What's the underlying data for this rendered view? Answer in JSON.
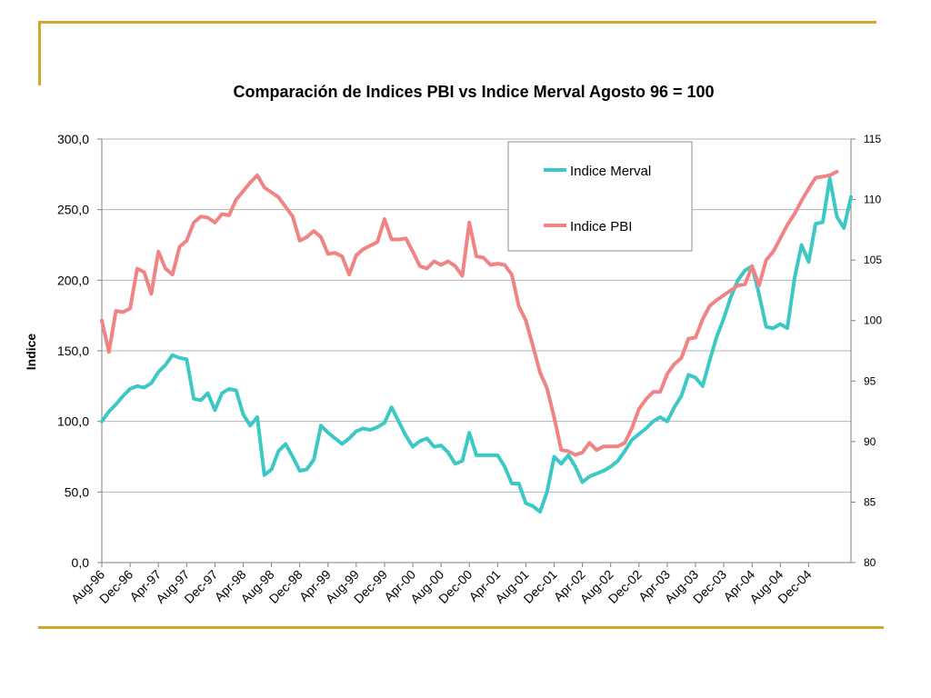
{
  "colors": {
    "frame": "#d4a62a",
    "merval": "#3cc8c4",
    "pbi": "#f08484",
    "grid": "#b4b4b4"
  },
  "chart_data": {
    "type": "line",
    "title": "Comparación de Indices PBI vs Indice Merval Agosto 96 = 100",
    "ylabel": "Indice",
    "ylim": [
      0,
      300
    ],
    "yticks": [
      "0,0",
      "50,0",
      "100,0",
      "150,0",
      "200,0",
      "250,0",
      "300,0"
    ],
    "y2lim": [
      80,
      115
    ],
    "y2ticks": [
      "80",
      "85",
      "90",
      "95",
      "100",
      "105",
      "110",
      "115"
    ],
    "grid": true,
    "legend_position": "top-right",
    "xtick_labels": [
      "Aug-96",
      "Dec-96",
      "Apr-97",
      "Aug-97",
      "Dec-97",
      "Apr-98",
      "Aug-98",
      "Dec-98",
      "Apr-99",
      "Aug-99",
      "Dec-99",
      "Apr-00",
      "Aug-00",
      "Dec-00",
      "Apr-01",
      "Aug-01",
      "Dec-01",
      "Apr-02",
      "Aug-02",
      "Dec-02",
      "Apr-03",
      "Aug-03",
      "Dec-03",
      "Apr-04",
      "Aug-04",
      "Dec-04"
    ],
    "series": [
      {
        "name": "Indice Merval",
        "axis": "left",
        "values": [
          100,
          107,
          112,
          118,
          123,
          125,
          124,
          127,
          135,
          140,
          147,
          145,
          144,
          116,
          115,
          120,
          108,
          120,
          123,
          122,
          105,
          97,
          103,
          62,
          66,
          79,
          84,
          75,
          65,
          66,
          73,
          97,
          92,
          88,
          84,
          88,
          93,
          95,
          94,
          96,
          99,
          110,
          100,
          90,
          82,
          86,
          88,
          82,
          83,
          78,
          70,
          72,
          92,
          76,
          76,
          76,
          76,
          68,
          56,
          56,
          42,
          40,
          36,
          50,
          75,
          70,
          76,
          68,
          57,
          61,
          63,
          65,
          68,
          72,
          79,
          87,
          91,
          95,
          100,
          103,
          100,
          110,
          118,
          133,
          131,
          125,
          143,
          160,
          173,
          188,
          200,
          207,
          210,
          190,
          167,
          166,
          169,
          166,
          201,
          225,
          213,
          240,
          241,
          272,
          245,
          237,
          259
        ]
      },
      {
        "name": "Indice PBI",
        "axis": "right",
        "values": [
          100,
          97.4,
          100.8,
          100.7,
          101,
          104.3,
          104,
          102.2,
          105.7,
          104.3,
          103.8,
          106.1,
          106.6,
          108.1,
          108.6,
          108.5,
          108.1,
          108.8,
          108.7,
          110,
          110.7,
          111.4,
          112.0,
          111.0,
          110.6,
          110.2,
          109.4,
          108.6,
          106.6,
          106.9,
          107.4,
          106.9,
          105.5,
          105.6,
          105.3,
          103.8,
          105.4,
          105.9,
          106.2,
          106.5,
          108.4,
          106.7,
          106.7,
          106.8,
          105.7,
          104.5,
          104.3,
          104.9,
          104.6,
          104.9,
          104.5,
          103.7,
          108.1,
          105.3,
          105.2,
          104.6,
          104.7,
          104.6,
          103.8,
          101.2,
          100.0,
          97.9,
          95.7,
          94.4,
          92.0,
          89.3,
          89.2,
          88.9,
          89.1,
          89.9,
          89.3,
          89.6,
          89.6,
          89.6,
          89.9,
          91.1,
          92.7,
          93.5,
          94.1,
          94.1,
          95.6,
          96.4,
          96.9,
          98.5,
          98.6,
          100.1,
          101.2,
          101.7,
          102.1,
          102.5,
          102.9,
          103.0,
          104.5,
          102.9,
          105.0,
          105.7,
          106.8,
          107.9,
          108.8,
          109.9,
          110.9,
          111.8,
          111.9,
          112.0,
          112.3
        ]
      }
    ]
  }
}
